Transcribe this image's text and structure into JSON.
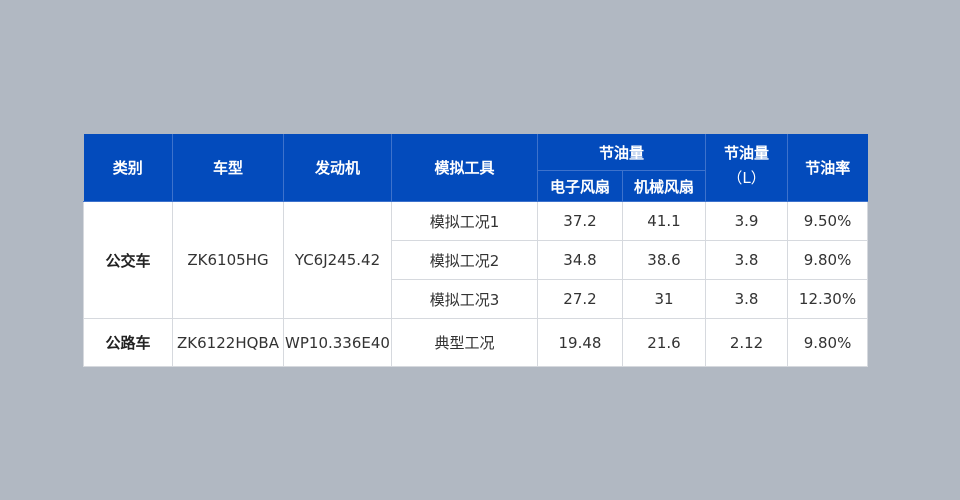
{
  "colors": {
    "header_bg": "#034bbc",
    "page_bg": "#b1b8c2"
  },
  "headers": {
    "category": "类别",
    "model": "车型",
    "engine": "发动机",
    "sim_tool": "模拟工具",
    "fuel_saving": "节油量",
    "electronic_fan": "电子风扇",
    "mechanical_fan": "机械风扇",
    "fuel_saving_l": "节油量",
    "unit_l": "（L）",
    "saving_rate": "节油率"
  },
  "groups": [
    {
      "category": "公交车",
      "model": "ZK6105HG",
      "engine": "YC6J245.42",
      "rows": [
        {
          "sim": "模拟工况1",
          "electronic": "37.2",
          "mechanical": "41.1",
          "saving": "3.9",
          "rate": "9.50%"
        },
        {
          "sim": "模拟工况2",
          "electronic": "34.8",
          "mechanical": "38.6",
          "saving": "3.8",
          "rate": "9.80%"
        },
        {
          "sim": "模拟工况3",
          "electronic": "27.2",
          "mechanical": "31",
          "saving": "3.8",
          "rate": "12.30%"
        }
      ]
    },
    {
      "category": "公路车",
      "model": "ZK6122HQBA",
      "engine": "WP10.336E40",
      "rows": [
        {
          "sim": "典型工况",
          "electronic": "19.48",
          "mechanical": "21.6",
          "saving": "2.12",
          "rate": "9.80%"
        }
      ]
    }
  ]
}
